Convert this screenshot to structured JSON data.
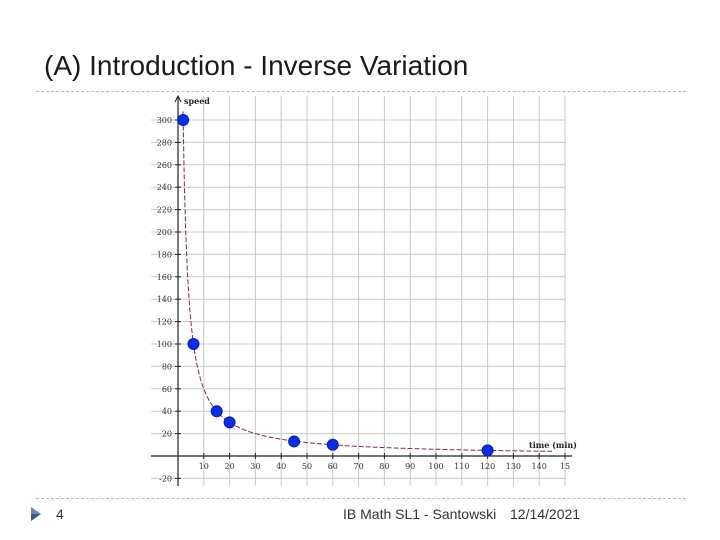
{
  "slide": {
    "title": "(A) Introduction - Inverse Variation",
    "page_number": "4",
    "course": "IB Math SL1 - Santowski",
    "date": "12/14/2021"
  },
  "colors": {
    "point": "#0a2ee8",
    "curve": "#7a2a5a",
    "grid": "#c8c8c8"
  },
  "chart_data": {
    "type": "scatter",
    "title": "",
    "xlabel": "time (min)",
    "ylabel": "speed",
    "xlim": [
      -10,
      150
    ],
    "ylim": [
      -30,
      310
    ],
    "x_ticks": [
      "10",
      "20",
      "30",
      "40",
      "50",
      "60",
      "70",
      "80",
      "90",
      "100",
      "110",
      "120",
      "130",
      "140",
      "15"
    ],
    "y_ticks": [
      {
        "value": 300,
        "label": "300"
      },
      {
        "value": 280,
        "label": "280"
      },
      {
        "value": 260,
        "label": "260"
      },
      {
        "value": 240,
        "label": "240"
      },
      {
        "value": 220,
        "label": "220"
      },
      {
        "value": 200,
        "label": "200"
      },
      {
        "value": 180,
        "label": "180"
      },
      {
        "value": 160,
        "label": "160"
      },
      {
        "value": 140,
        "label": "140"
      },
      {
        "value": 120,
        "label": "120"
      },
      {
        "value": 100,
        "label": "100"
      },
      {
        "value": 80,
        "label": "80"
      },
      {
        "value": 60,
        "label": "60"
      },
      {
        "value": 40,
        "label": "40"
      },
      {
        "value": 20,
        "label": "20"
      },
      {
        "value": -20,
        "label": "-20"
      }
    ],
    "grid": true,
    "points": [
      {
        "x": 2,
        "y": 300
      },
      {
        "x": 6,
        "y": 100
      },
      {
        "x": 15,
        "y": 40
      },
      {
        "x": 20,
        "y": 30
      },
      {
        "x": 45,
        "y": 13
      },
      {
        "x": 60,
        "y": 10
      },
      {
        "x": 120,
        "y": 5
      }
    ],
    "curve": {
      "type": "inverse",
      "k": 600
    }
  }
}
